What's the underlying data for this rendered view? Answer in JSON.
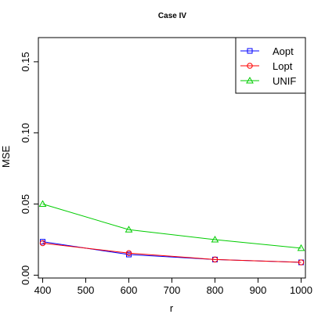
{
  "chart_data": {
    "type": "line",
    "title": "Case IV",
    "xlabel": "r",
    "ylabel": "MSE",
    "x": [
      400,
      600,
      800,
      1000
    ],
    "xlim": [
      390,
      1010
    ],
    "ylim": [
      -0.002,
      0.167
    ],
    "xticks": [
      400,
      500,
      600,
      700,
      800,
      900,
      1000
    ],
    "yticks": [
      0.0,
      0.05,
      0.1,
      0.15
    ],
    "ytick_labels": [
      "0.00",
      "0.05",
      "0.10",
      "0.15"
    ],
    "grid": false,
    "legend_position": "top-right",
    "series": [
      {
        "name": "Aopt",
        "color": "#0000ff",
        "marker": "square",
        "values": [
          0.0235,
          0.0145,
          0.011,
          0.009
        ]
      },
      {
        "name": "Lopt",
        "color": "#ff0000",
        "marker": "circle",
        "values": [
          0.0225,
          0.0155,
          0.011,
          0.009
        ]
      },
      {
        "name": "UNIF",
        "color": "#00cc00",
        "marker": "triangle",
        "values": [
          0.05,
          0.032,
          0.025,
          0.019
        ]
      }
    ]
  }
}
